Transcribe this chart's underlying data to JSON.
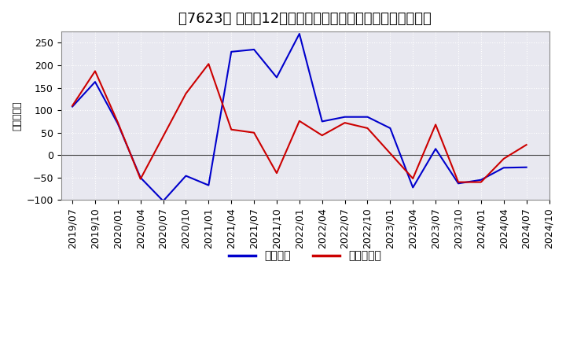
{
  "title": "［7623］ 利益の12か月移動合計の対前年同期増減額の推移",
  "ylabel": "（百万円）",
  "x_labels": [
    "2019/07",
    "2019/10",
    "2020/01",
    "2020/04",
    "2020/07",
    "2020/10",
    "2021/01",
    "2021/04",
    "2021/07",
    "2021/10",
    "2022/01",
    "2022/04",
    "2022/07",
    "2022/10",
    "2023/01",
    "2023/04",
    "2023/07",
    "2023/10",
    "2024/01",
    "2024/04",
    "2024/07",
    "2024/10"
  ],
  "keijo_rieki": [
    108,
    163,
    70,
    -50,
    -102,
    -46,
    -67,
    230,
    235,
    173,
    270,
    75,
    85,
    85,
    60,
    -72,
    14,
    -63,
    -55,
    -28,
    -27,
    null
  ],
  "touki_rieki": [
    110,
    187,
    73,
    -53,
    null,
    137,
    203,
    57,
    50,
    -40,
    76,
    44,
    72,
    60,
    null,
    -52,
    68,
    -60,
    -60,
    -8,
    23,
    null
  ],
  "blue_color": "#0000cc",
  "red_color": "#cc0000",
  "bg_color": "#ffffff",
  "plot_bg_color": "#e8e8f0",
  "grid_color": "#ffffff",
  "ylim": [
    -100,
    275
  ],
  "yticks": [
    -100,
    -50,
    0,
    50,
    100,
    150,
    200,
    250
  ],
  "legend_keijo": "経常利益",
  "legend_touki": "当期純利益",
  "title_fontsize": 13,
  "axis_fontsize": 9
}
